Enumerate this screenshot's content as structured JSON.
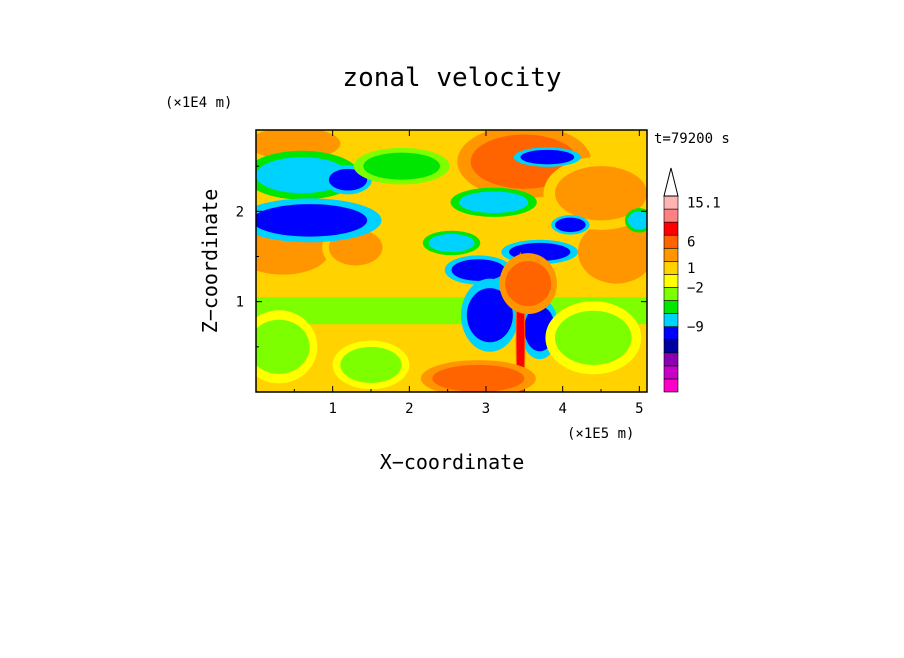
{
  "chart_data": {
    "type": "heatmap",
    "title": "zonal velocity",
    "xlabel": "X−coordinate",
    "ylabel": "Z−coordinate",
    "x_scale_label": "(×1E5 m)",
    "y_scale_label": "(×1E4 m)",
    "time_label": "t=79200 s",
    "xlim": [
      0,
      5.1
    ],
    "ylim": [
      0,
      2.9
    ],
    "x_ticks": [
      1,
      2,
      3,
      4,
      5
    ],
    "x_tick_labels": [
      "1",
      "2",
      "3",
      "4",
      "5"
    ],
    "y_ticks": [
      1,
      2
    ],
    "y_tick_labels": [
      "1",
      "2"
    ],
    "colorbar": {
      "levels": [
        {
          "color": "#ff00c8"
        },
        {
          "color": "#c800c8"
        },
        {
          "color": "#8c00b4"
        },
        {
          "color": "#0000a0"
        },
        {
          "color": "#0000ff"
        },
        {
          "color": "#00d2ff"
        },
        {
          "color": "#00e600"
        },
        {
          "color": "#7dff00"
        },
        {
          "color": "#ffff00"
        },
        {
          "color": "#ffd200"
        },
        {
          "color": "#ff9600"
        },
        {
          "color": "#ff6400"
        },
        {
          "color": "#ff0000"
        },
        {
          "color": "#ff8080"
        },
        {
          "color": "#ffb4b4"
        },
        {
          "color": "#ffffff"
        }
      ],
      "labels": [
        {
          "text": "15.1",
          "level": 14.5
        },
        {
          "text": "6",
          "level": 11.5
        },
        {
          "text": "1",
          "level": 9.5
        },
        {
          "text": "−2",
          "level": 8
        },
        {
          "text": "−9",
          "level": 5
        }
      ]
    },
    "field_features": [
      {
        "kind": "background",
        "level": 8.5
      },
      {
        "kind": "band",
        "x": [
          0,
          5.1
        ],
        "z": [
          0.75,
          1.05
        ],
        "level": 7
      },
      {
        "kind": "blob",
        "x": 0.35,
        "z": 1.55,
        "rx": 0.6,
        "rz": 0.25,
        "level": 10
      },
      {
        "kind": "blob",
        "x": 1.3,
        "z": 1.6,
        "rx": 0.35,
        "rz": 0.2,
        "level": 10
      },
      {
        "kind": "blob",
        "x": 4.7,
        "z": 1.55,
        "rx": 0.5,
        "rz": 0.35,
        "level": 10
      },
      {
        "kind": "blob",
        "x": 0.5,
        "z": 2.75,
        "rx": 0.6,
        "rz": 0.18,
        "level": 10
      },
      {
        "kind": "blob",
        "x": 3.5,
        "z": 2.55,
        "rx": 0.7,
        "rz": 0.3,
        "level": 11
      },
      {
        "kind": "blob",
        "x": 4.5,
        "z": 2.2,
        "rx": 0.6,
        "rz": 0.3,
        "level": 10
      },
      {
        "kind": "blob",
        "x": 0.6,
        "z": 2.4,
        "rx": 0.6,
        "rz": 0.2,
        "level": 5
      },
      {
        "kind": "blob",
        "x": 0.7,
        "z": 1.9,
        "rx": 0.75,
        "rz": 0.18,
        "level": 4
      },
      {
        "kind": "blob",
        "x": 1.2,
        "z": 2.35,
        "rx": 0.25,
        "rz": 0.12,
        "level": 4
      },
      {
        "kind": "blob",
        "x": 3.1,
        "z": 2.1,
        "rx": 0.45,
        "rz": 0.12,
        "level": 5
      },
      {
        "kind": "blob",
        "x": 2.55,
        "z": 1.65,
        "rx": 0.3,
        "rz": 0.1,
        "level": 5
      },
      {
        "kind": "blob",
        "x": 3.7,
        "z": 1.55,
        "rx": 0.4,
        "rz": 0.1,
        "level": 4
      },
      {
        "kind": "blob",
        "x": 2.9,
        "z": 1.35,
        "rx": 0.35,
        "rz": 0.12,
        "level": 4
      },
      {
        "kind": "blob",
        "x": 3.05,
        "z": 0.85,
        "rx": 0.3,
        "rz": 0.3,
        "level": 4
      },
      {
        "kind": "blob",
        "x": 3.7,
        "z": 0.7,
        "rx": 0.2,
        "rz": 0.25,
        "level": 4
      },
      {
        "kind": "blob",
        "x": 3.45,
        "z": 0.6,
        "rx": 0.05,
        "rz": 0.7,
        "level": 12
      },
      {
        "kind": "blob",
        "x": 3.55,
        "z": 1.2,
        "rx": 0.3,
        "rz": 0.25,
        "level": 11
      },
      {
        "kind": "blob",
        "x": 2.9,
        "z": 0.15,
        "rx": 0.6,
        "rz": 0.15,
        "level": 11
      },
      {
        "kind": "blob",
        "x": 0.3,
        "z": 0.5,
        "rx": 0.4,
        "rz": 0.3,
        "level": 7
      },
      {
        "kind": "blob",
        "x": 4.4,
        "z": 0.6,
        "rx": 0.5,
        "rz": 0.3,
        "level": 7
      },
      {
        "kind": "blob",
        "x": 1.5,
        "z": 0.3,
        "rx": 0.4,
        "rz": 0.2,
        "level": 7
      },
      {
        "kind": "blob",
        "x": 5.0,
        "z": 1.9,
        "rx": 0.15,
        "rz": 0.1,
        "level": 5
      },
      {
        "kind": "blob",
        "x": 4.1,
        "z": 1.85,
        "rx": 0.2,
        "rz": 0.08,
        "level": 4
      },
      {
        "kind": "blob",
        "x": 3.8,
        "z": 2.6,
        "rx": 0.35,
        "rz": 0.08,
        "level": 4
      },
      {
        "kind": "blob",
        "x": 1.9,
        "z": 2.5,
        "rx": 0.5,
        "rz": 0.15,
        "level": 6
      }
    ]
  }
}
